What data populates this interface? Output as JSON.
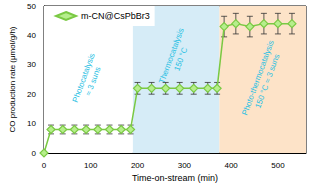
{
  "chart_data": {
    "type": "line",
    "x_label": "Time-on-stream (min)",
    "y_label": "CO production rate (μmol/g/h)",
    "xlim": [
      0,
      560
    ],
    "xticks": [
      0,
      100,
      200,
      300,
      400,
      500
    ],
    "ylim": [
      0,
      50
    ],
    "yticks": [
      0,
      10,
      20,
      30,
      40,
      50
    ],
    "grid": false,
    "legend": "upper left",
    "series": [
      {
        "name": "m-CN@CsPbBr3",
        "color": "#7ac943",
        "marker": "diamond",
        "line_style": "solid",
        "x": [
          0,
          15,
          40,
          65,
          90,
          115,
          140,
          165,
          185,
          200,
          230,
          260,
          290,
          320,
          350,
          370,
          385,
          410,
          440,
          470,
          500,
          530
        ],
        "values": [
          0,
          8,
          8,
          8,
          8,
          8,
          8,
          8,
          8,
          22,
          22,
          22,
          22,
          22,
          22,
          22,
          43,
          44,
          43,
          44,
          44,
          44
        ],
        "errors": [
          0,
          1.5,
          1.5,
          1.5,
          1.5,
          1.5,
          1.5,
          1.5,
          1.5,
          2,
          2,
          2,
          2,
          2,
          2,
          2,
          3.5,
          3.5,
          3.5,
          3.5,
          3.5,
          3.5
        ]
      }
    ],
    "regions": [
      {
        "from": 0,
        "to": 190,
        "color": "#ffffff",
        "label": "Photocatalysis\n≈ 3 suns"
      },
      {
        "from": 190,
        "to": 375,
        "color": "#d6ecf7",
        "label": "Thermocatalysis\n150 °C"
      },
      {
        "from": 375,
        "to": 560,
        "color": "#fde3c8",
        "label": "Photo-thermocatalysis\n150 °C ≈ 3 suns"
      }
    ]
  }
}
